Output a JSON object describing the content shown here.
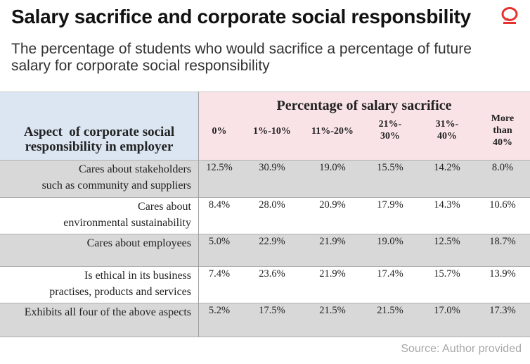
{
  "title": "Salary sacrifice and corporate social responsbility",
  "subtitle": "The percentage of students who would sacrifice a percentage of future salary for corporate social responsibility",
  "source": "Source: Author provided",
  "colors": {
    "header_left": "#dce6f2",
    "header_right": "#f9e3e6",
    "row_shade": "#d8d8d8",
    "logo": "#e6322d"
  },
  "logo_icon": "speech-bubble-logo",
  "chart_data": {
    "type": "table",
    "row_header": "Aspect  of corporate social responsibility in employer",
    "column_group_header": "Percentage of salary sacrifice",
    "columns": [
      "0%",
      "1%-10%",
      "11%-20%",
      "21%-30%",
      "31%-40%",
      "More than 40%"
    ],
    "rows": [
      {
        "label": "Cares about stakeholders such as community and suppliers",
        "values": [
          "12.5%",
          "30.9%",
          "19.0%",
          "15.5%",
          "14.2%",
          "8.0%"
        ]
      },
      {
        "label": "Cares about environmental sustainability",
        "values": [
          "8.4%",
          "28.0%",
          "20.9%",
          "17.9%",
          "14.3%",
          "10.6%"
        ]
      },
      {
        "label": "Cares about employees",
        "values": [
          "5.0%",
          "22.9%",
          "21.9%",
          "19.0%",
          "12.5%",
          "18.7%"
        ]
      },
      {
        "label": "Is ethical in its business practises, products and services",
        "values": [
          "7.4%",
          "23.6%",
          "21.9%",
          "17.4%",
          "15.7%",
          "13.9%"
        ]
      },
      {
        "label": "Exhibits all four of the above aspects",
        "values": [
          "5.2%",
          "17.5%",
          "21.5%",
          "21.5%",
          "17.0%",
          "17.3%"
        ]
      }
    ]
  }
}
